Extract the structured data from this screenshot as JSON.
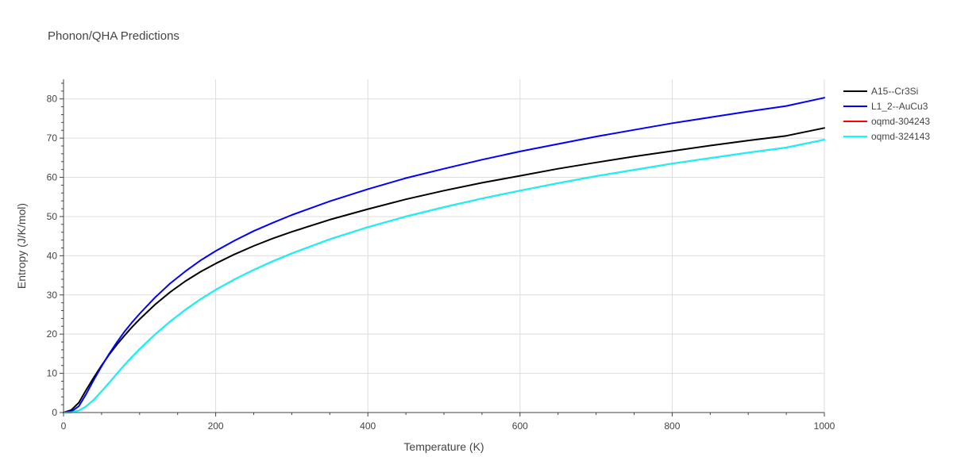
{
  "chart_data": {
    "type": "line",
    "title": "Phonon/QHA Predictions",
    "xlabel": "Temperature (K)",
    "ylabel": "Entropy (J/K/mol)",
    "xlim": [
      0,
      1000
    ],
    "ylim": [
      0,
      85
    ],
    "x_ticks": [
      0,
      200,
      400,
      600,
      800,
      1000
    ],
    "y_ticks": [
      0,
      10,
      20,
      30,
      40,
      50,
      60,
      70,
      80
    ],
    "grid": true,
    "legend_position": "right",
    "series": [
      {
        "name": "A15--Cr3Si",
        "color": "#000000",
        "x": [
          0,
          10,
          20,
          30,
          40,
          50,
          60,
          70,
          80,
          90,
          100,
          120,
          140,
          160,
          180,
          200,
          225,
          250,
          275,
          300,
          350,
          400,
          450,
          500,
          550,
          600,
          650,
          700,
          750,
          800,
          850,
          900,
          950,
          1000
        ],
        "y": [
          0,
          0.6,
          2.5,
          5.8,
          9.0,
          12.0,
          14.8,
          17.3,
          19.6,
          21.8,
          23.8,
          27.5,
          30.7,
          33.5,
          35.9,
          38.0,
          40.4,
          42.5,
          44.4,
          46.1,
          49.2,
          51.9,
          54.4,
          56.6,
          58.6,
          60.4,
          62.2,
          63.8,
          65.3,
          66.7,
          68.1,
          69.4,
          70.6,
          72.6
        ]
      },
      {
        "name": "L1_2--AuCu3",
        "color": "#0000ff",
        "x": [
          0,
          10,
          20,
          30,
          40,
          50,
          60,
          70,
          80,
          90,
          100,
          120,
          140,
          160,
          180,
          200,
          225,
          250,
          275,
          300,
          350,
          400,
          450,
          500,
          550,
          600,
          650,
          700,
          750,
          800,
          850,
          900,
          950,
          1000
        ],
        "y": [
          0,
          0.2,
          1.6,
          4.8,
          8.4,
          11.8,
          15.0,
          17.9,
          20.6,
          23.0,
          25.2,
          29.3,
          32.9,
          36.0,
          38.8,
          41.2,
          43.9,
          46.3,
          48.4,
          50.4,
          53.9,
          57.0,
          59.8,
          62.2,
          64.5,
          66.6,
          68.5,
          70.4,
          72.1,
          73.8,
          75.3,
          76.8,
          78.2,
          80.3
        ]
      },
      {
        "name": "oqmd-304243",
        "color": "#ff0000",
        "x": [
          0,
          10,
          20,
          30,
          40,
          50,
          60,
          70,
          80,
          90,
          100,
          120,
          140,
          160,
          180,
          200,
          225,
          250,
          275,
          300,
          350,
          400,
          450,
          500,
          550,
          600,
          650,
          700,
          750,
          800,
          850,
          900,
          950,
          1000
        ],
        "y": [
          0,
          0.05,
          0.5,
          1.6,
          3.3,
          5.4,
          7.6,
          9.9,
          12.1,
          14.2,
          16.2,
          19.9,
          23.2,
          26.2,
          28.9,
          31.3,
          34.0,
          36.4,
          38.6,
          40.6,
          44.2,
          47.3,
          50.0,
          52.4,
          54.6,
          56.6,
          58.5,
          60.3,
          61.9,
          63.5,
          64.9,
          66.3,
          67.6,
          69.6
        ]
      },
      {
        "name": "oqmd-324143",
        "color": "#00ffff",
        "x": [
          0,
          10,
          20,
          30,
          40,
          50,
          60,
          70,
          80,
          90,
          100,
          120,
          140,
          160,
          180,
          200,
          225,
          250,
          275,
          300,
          350,
          400,
          450,
          500,
          550,
          600,
          650,
          700,
          750,
          800,
          850,
          900,
          950,
          1000
        ],
        "y": [
          0,
          0.05,
          0.5,
          1.6,
          3.3,
          5.4,
          7.6,
          9.9,
          12.1,
          14.2,
          16.2,
          19.9,
          23.2,
          26.2,
          28.9,
          31.3,
          34.0,
          36.4,
          38.6,
          40.6,
          44.2,
          47.3,
          50.0,
          52.4,
          54.6,
          56.6,
          58.5,
          60.3,
          61.9,
          63.5,
          64.9,
          66.3,
          67.6,
          69.6
        ]
      }
    ]
  }
}
